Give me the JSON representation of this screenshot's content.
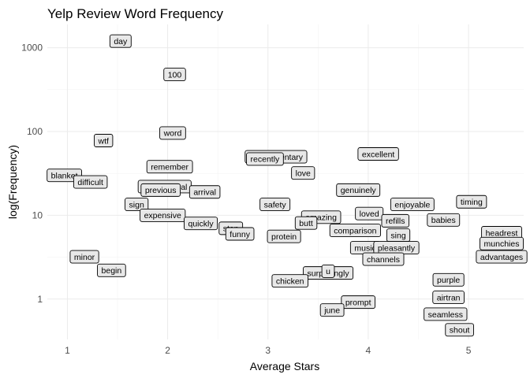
{
  "chart_data": {
    "type": "scatter",
    "title": "Yelp Review Word Frequency",
    "xlabel": "Average Stars",
    "ylabel": "log(Frequency)",
    "x_scale": "linear",
    "y_scale": "log10",
    "xlim": [
      0.8,
      5.55
    ],
    "ylim": [
      0.33,
      1900
    ],
    "x_ticks": [
      1,
      2,
      3,
      4,
      5
    ],
    "y_ticks": [
      1,
      10,
      100,
      1000
    ],
    "y_tick_labels": [
      "1",
      "10",
      "100",
      "1000"
    ],
    "grid": true,
    "marker": "label",
    "label_fill": "#e8e8e8",
    "points": [
      {
        "word": "day",
        "x": 1.53,
        "y": 1200
      },
      {
        "word": "100",
        "x": 2.07,
        "y": 480
      },
      {
        "word": "wtf",
        "x": 1.36,
        "y": 78
      },
      {
        "word": "word",
        "x": 2.05,
        "y": 96
      },
      {
        "word": "remember",
        "x": 2.02,
        "y": 38
      },
      {
        "word": "blanket",
        "x": 0.97,
        "y": 30
      },
      {
        "word": "difficult",
        "x": 1.23,
        "y": 25
      },
      {
        "word": "international",
        "x": 1.97,
        "y": 22
      },
      {
        "word": "previous",
        "x": 1.93,
        "y": 20
      },
      {
        "word": "arrival",
        "x": 2.37,
        "y": 19
      },
      {
        "word": "sign",
        "x": 1.69,
        "y": 13.5
      },
      {
        "word": "expensive",
        "x": 1.95,
        "y": 10
      },
      {
        "word": "quickly",
        "x": 2.33,
        "y": 8
      },
      {
        "word": "stop",
        "x": 2.63,
        "y": 7
      },
      {
        "word": "funny",
        "x": 2.72,
        "y": 6
      },
      {
        "word": "complimentary",
        "x": 3.08,
        "y": 50
      },
      {
        "word": "recently",
        "x": 2.97,
        "y": 47
      },
      {
        "word": "love",
        "x": 3.35,
        "y": 32
      },
      {
        "word": "excellent",
        "x": 4.1,
        "y": 54
      },
      {
        "word": "genuinely",
        "x": 3.9,
        "y": 20
      },
      {
        "word": "safety",
        "x": 3.07,
        "y": 13.5
      },
      {
        "word": "amazing",
        "x": 3.53,
        "y": 9.5
      },
      {
        "word": "butt",
        "x": 3.38,
        "y": 8.1
      },
      {
        "word": "protein",
        "x": 3.16,
        "y": 5.6
      },
      {
        "word": "loved",
        "x": 4.01,
        "y": 10.5
      },
      {
        "word": "enjoyable",
        "x": 4.44,
        "y": 13.5
      },
      {
        "word": "refills",
        "x": 4.27,
        "y": 8.6
      },
      {
        "word": "comparison",
        "x": 3.87,
        "y": 6.6
      },
      {
        "word": "sing",
        "x": 4.3,
        "y": 5.8
      },
      {
        "word": "timing",
        "x": 5.03,
        "y": 14.5
      },
      {
        "word": "babies",
        "x": 4.75,
        "y": 8.8
      },
      {
        "word": "music",
        "x": 3.97,
        "y": 4.1
      },
      {
        "word": "pleasantly",
        "x": 4.28,
        "y": 4.1
      },
      {
        "word": "channels",
        "x": 4.15,
        "y": 3.0
      },
      {
        "word": "headrest",
        "x": 5.33,
        "y": 6.2
      },
      {
        "word": "munchies",
        "x": 5.33,
        "y": 4.6
      },
      {
        "word": "advantages",
        "x": 5.33,
        "y": 3.2
      },
      {
        "word": "surprisingly",
        "x": 3.6,
        "y": 2.05
      },
      {
        "word": "u",
        "x": 3.6,
        "y": 2.15
      },
      {
        "word": "chicken",
        "x": 3.22,
        "y": 1.65
      },
      {
        "word": "prompt",
        "x": 3.9,
        "y": 0.92
      },
      {
        "word": "june",
        "x": 3.64,
        "y": 0.74
      },
      {
        "word": "minor",
        "x": 1.17,
        "y": 3.2
      },
      {
        "word": "begin",
        "x": 1.44,
        "y": 2.2
      },
      {
        "word": "purple",
        "x": 4.8,
        "y": 1.7
      },
      {
        "word": "airtran",
        "x": 4.8,
        "y": 1.05
      },
      {
        "word": "seamless",
        "x": 4.77,
        "y": 0.66
      },
      {
        "word": "shout",
        "x": 4.91,
        "y": 0.43
      }
    ]
  }
}
